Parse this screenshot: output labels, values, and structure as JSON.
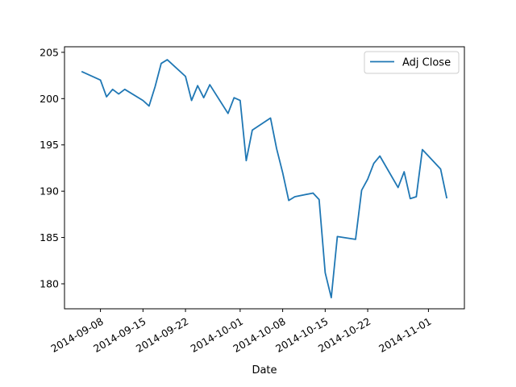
{
  "chart_data": {
    "type": "line",
    "xlabel": "Date",
    "ylabel": "",
    "ylim": [
      177.3,
      205.6
    ],
    "xlim": [
      "2014-09-05",
      "2014-11-04"
    ],
    "x_ticks": [
      "2014-09-08",
      "2014-09-15",
      "2014-09-22",
      "2014-10-01",
      "2014-10-08",
      "2014-10-15",
      "2014-10-22",
      "2014-11-01"
    ],
    "y_ticks": [
      180,
      185,
      190,
      195,
      200,
      205
    ],
    "legend_position": "top-right",
    "grid": false,
    "series": [
      {
        "name": "Adj Close",
        "color": "#1f77b4",
        "x": [
          "2014-09-05",
          "2014-09-08",
          "2014-09-09",
          "2014-09-10",
          "2014-09-11",
          "2014-09-12",
          "2014-09-15",
          "2014-09-16",
          "2014-09-17",
          "2014-09-18",
          "2014-09-19",
          "2014-09-22",
          "2014-09-23",
          "2014-09-24",
          "2014-09-25",
          "2014-09-26",
          "2014-09-29",
          "2014-09-30",
          "2014-10-01",
          "2014-10-02",
          "2014-10-03",
          "2014-10-06",
          "2014-10-07",
          "2014-10-08",
          "2014-10-09",
          "2014-10-10",
          "2014-10-13",
          "2014-10-14",
          "2014-10-15",
          "2014-10-16",
          "2014-10-17",
          "2014-10-20",
          "2014-10-21",
          "2014-10-22",
          "2014-10-23",
          "2014-10-24",
          "2014-10-27",
          "2014-10-28",
          "2014-10-29",
          "2014-10-30",
          "2014-10-31",
          "2014-11-03",
          "2014-11-04"
        ],
        "values": [
          202.9,
          202.0,
          200.2,
          201.0,
          200.5,
          201.0,
          199.8,
          199.2,
          201.3,
          203.8,
          204.2,
          202.4,
          199.8,
          201.4,
          200.1,
          201.5,
          198.4,
          200.1,
          199.8,
          193.3,
          196.6,
          197.9,
          194.6,
          192.0,
          189.0,
          189.4,
          189.8,
          189.1,
          181.2,
          178.5,
          185.1,
          184.8,
          190.1,
          191.3,
          193.0,
          193.8,
          190.4,
          192.1,
          189.2,
          189.4,
          194.5,
          192.4,
          189.3
        ]
      }
    ]
  }
}
